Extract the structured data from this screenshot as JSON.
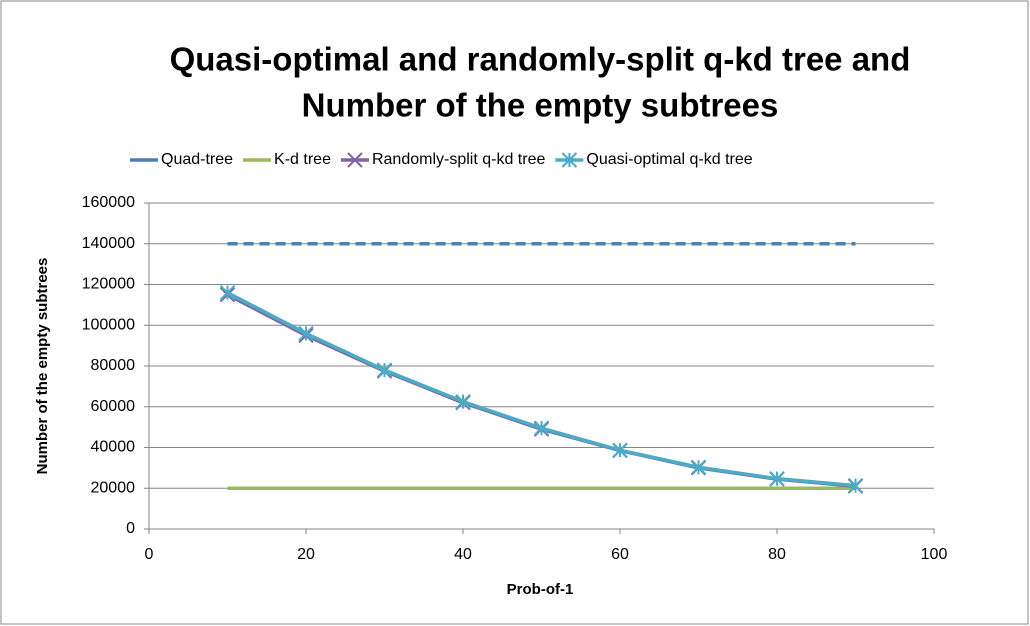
{
  "chart_data": {
    "type": "line",
    "title": [
      "Quasi-optimal and randomly-split q-kd tree and",
      "Number of the empty subtrees"
    ],
    "x_label": "Prob-of-1",
    "y_label": "Number of the empty subtrees",
    "x": [
      10,
      20,
      30,
      40,
      50,
      60,
      70,
      80,
      90
    ],
    "series": [
      {
        "name": "Quad-tree",
        "color": "#4a7ebb",
        "line_style": "dashed",
        "marker": "none",
        "values": [
          140000,
          140000,
          140000,
          140000,
          140000,
          140000,
          140000,
          140000,
          140000
        ]
      },
      {
        "name": "K-d tree",
        "color": "#9bbb59",
        "line_style": "solid",
        "marker": "none",
        "values": [
          20000,
          20000,
          20000,
          20000,
          20000,
          20000,
          20000,
          20000,
          20000
        ]
      },
      {
        "name": "Randomly-split q-kd tree",
        "color": "#8064a2",
        "line_style": "solid",
        "marker": "x",
        "values": [
          115000,
          95000,
          77500,
          62000,
          49000,
          38500,
          30000,
          24500,
          21000
        ]
      },
      {
        "name": "Quasi-optimal q-kd tree",
        "color": "#4bacc6",
        "line_style": "solid",
        "marker": "star",
        "values": [
          116000,
          96000,
          78000,
          62500,
          49500,
          38700,
          30300,
          24700,
          21300
        ]
      }
    ],
    "xlim": [
      0,
      100
    ],
    "xticks": [
      0,
      20,
      40,
      60,
      80,
      100
    ],
    "ylim": [
      0,
      160000
    ],
    "yticks": [
      0,
      20000,
      40000,
      60000,
      80000,
      100000,
      120000,
      140000,
      160000
    ],
    "grid": true,
    "legend": "top"
  }
}
